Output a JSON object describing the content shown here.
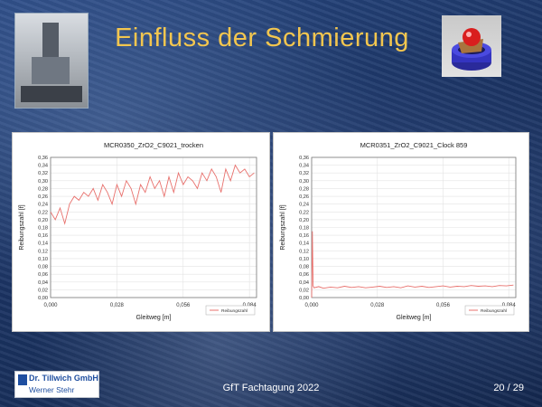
{
  "slide": {
    "title": "Einfluss der Schmierung",
    "footer_center": "GfT Fachtagung 2022",
    "page_current": "20",
    "page_separator": "/",
    "page_total": "29",
    "logo_company": "Dr. Tillwich GmbH",
    "logo_person": "Werner Stehr"
  },
  "colors": {
    "title": "#f3c64f",
    "series": "#e8706c",
    "logo": "#1f4fa0"
  },
  "chart_data": [
    {
      "type": "line",
      "title": "MCR0350_ZrO2_C9021_trocken",
      "xlabel": "Gleitweg [m]",
      "ylabel": "Reibungszahl [f]",
      "xlim": [
        0.0,
        0.087
      ],
      "ylim": [
        0.0,
        0.36
      ],
      "xticks": [
        "0,000",
        "0,028",
        "0,056",
        "0,084"
      ],
      "yticks": [
        "0,00",
        "0,02",
        "0,04",
        "0,06",
        "0,08",
        "0,10",
        "0,12",
        "0,14",
        "0,16",
        "0,18",
        "0,20",
        "0,22",
        "0,24",
        "0,26",
        "0,28",
        "0,30",
        "0,32",
        "0,34",
        "0,36"
      ],
      "grid": true,
      "legend": "bottom-right",
      "series": [
        {
          "name": "Reibungszahl",
          "x": [
            0.0,
            0.002,
            0.004,
            0.006,
            0.008,
            0.01,
            0.012,
            0.014,
            0.016,
            0.018,
            0.02,
            0.022,
            0.024,
            0.026,
            0.028,
            0.03,
            0.032,
            0.034,
            0.036,
            0.038,
            0.04,
            0.042,
            0.044,
            0.046,
            0.048,
            0.05,
            0.052,
            0.054,
            0.056,
            0.058,
            0.06,
            0.062,
            0.064,
            0.066,
            0.068,
            0.07,
            0.072,
            0.074,
            0.076,
            0.078,
            0.08,
            0.082,
            0.084,
            0.086
          ],
          "y": [
            0.22,
            0.2,
            0.23,
            0.19,
            0.24,
            0.26,
            0.25,
            0.27,
            0.26,
            0.28,
            0.25,
            0.29,
            0.27,
            0.24,
            0.29,
            0.26,
            0.3,
            0.28,
            0.24,
            0.29,
            0.27,
            0.31,
            0.28,
            0.3,
            0.26,
            0.31,
            0.27,
            0.32,
            0.29,
            0.31,
            0.3,
            0.28,
            0.32,
            0.3,
            0.33,
            0.31,
            0.27,
            0.33,
            0.3,
            0.34,
            0.32,
            0.33,
            0.31,
            0.32
          ]
        }
      ]
    },
    {
      "type": "line",
      "title": "MCR0351_ZrO2_C9021_Clock 859",
      "xlabel": "Gleitweg [m]",
      "ylabel": "Reibungszahl [f]",
      "xlim": [
        0.0,
        0.087
      ],
      "ylim": [
        0.0,
        0.36
      ],
      "xticks": [
        "0,000",
        "0,028",
        "0,056",
        "0,084"
      ],
      "yticks": [
        "0,00",
        "0,02",
        "0,04",
        "0,06",
        "0,08",
        "0,10",
        "0,12",
        "0,14",
        "0,16",
        "0,18",
        "0,20",
        "0,22",
        "0,24",
        "0,26",
        "0,28",
        "0,30",
        "0,32",
        "0,34",
        "0,36"
      ],
      "grid": true,
      "legend": "bottom-right",
      "series": [
        {
          "name": "Reibungszahl",
          "x": [
            0.0,
            0.0003,
            0.0006,
            0.001,
            0.003,
            0.005,
            0.008,
            0.011,
            0.014,
            0.017,
            0.02,
            0.023,
            0.026,
            0.029,
            0.032,
            0.035,
            0.038,
            0.041,
            0.044,
            0.047,
            0.05,
            0.053,
            0.056,
            0.059,
            0.062,
            0.065,
            0.068,
            0.071,
            0.074,
            0.077,
            0.08,
            0.083,
            0.086
          ],
          "y": [
            0.0,
            0.17,
            0.03,
            0.025,
            0.028,
            0.024,
            0.027,
            0.025,
            0.029,
            0.026,
            0.028,
            0.025,
            0.027,
            0.029,
            0.026,
            0.028,
            0.025,
            0.03,
            0.027,
            0.029,
            0.026,
            0.028,
            0.03,
            0.027,
            0.029,
            0.028,
            0.031,
            0.029,
            0.03,
            0.028,
            0.031,
            0.03,
            0.032
          ]
        }
      ]
    }
  ]
}
